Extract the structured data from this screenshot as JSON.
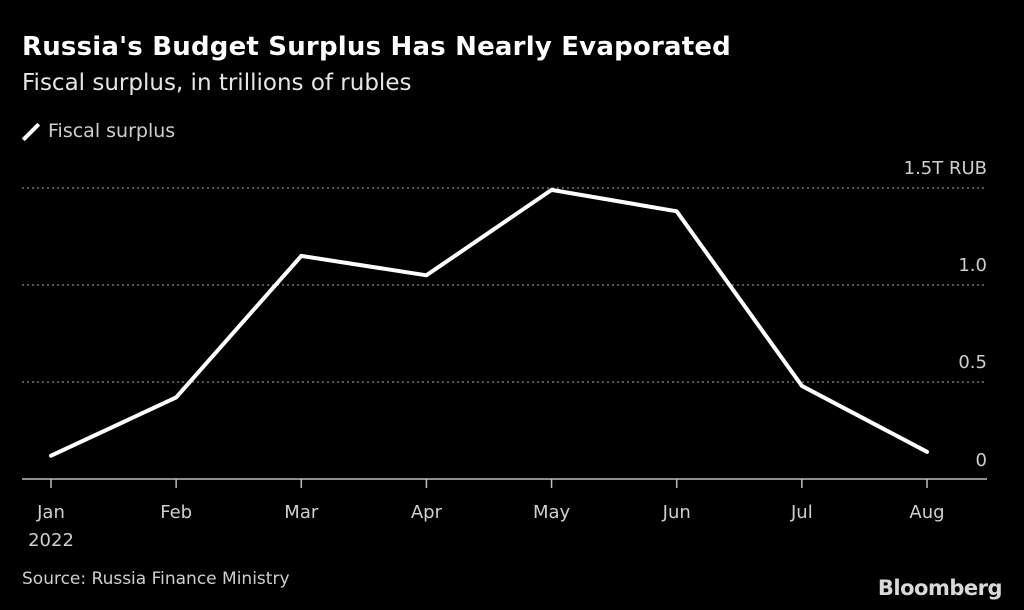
{
  "header": {
    "title": "Russia's Budget Surplus Has Nearly Evaporated",
    "subtitle": "Fiscal surplus, in trillions of rubles"
  },
  "footer": {
    "source": "Source: Russia Finance Ministry",
    "brand": "Bloomberg"
  },
  "colors": {
    "background": "#000000",
    "line": "#ffffff",
    "grid": "#8a8a8a",
    "axis": "#bdbdbd",
    "tick_text": "#cfcfcf"
  },
  "chart_data": {
    "type": "line",
    "title": "Russia's Budget Surplus Has Nearly Evaporated",
    "subtitle": "Fiscal surplus, in trillions of rubles",
    "xlabel": "",
    "ylabel": "",
    "categories": [
      "Jan",
      "Feb",
      "Mar",
      "Apr",
      "May",
      "Jun",
      "Jul",
      "Aug"
    ],
    "x_year_label": "2022",
    "series": [
      {
        "name": "Fiscal surplus",
        "values": [
          0.12,
          0.42,
          1.15,
          1.05,
          1.49,
          1.38,
          0.48,
          0.14
        ]
      }
    ],
    "ylim": [
      0,
      1.5
    ],
    "yticks": [
      0,
      0.5,
      1.0,
      1.5
    ],
    "ytick_labels": [
      "0",
      "0.5",
      "1.0",
      "1.5T RUB"
    ],
    "grid": true,
    "legend": "top-left"
  }
}
